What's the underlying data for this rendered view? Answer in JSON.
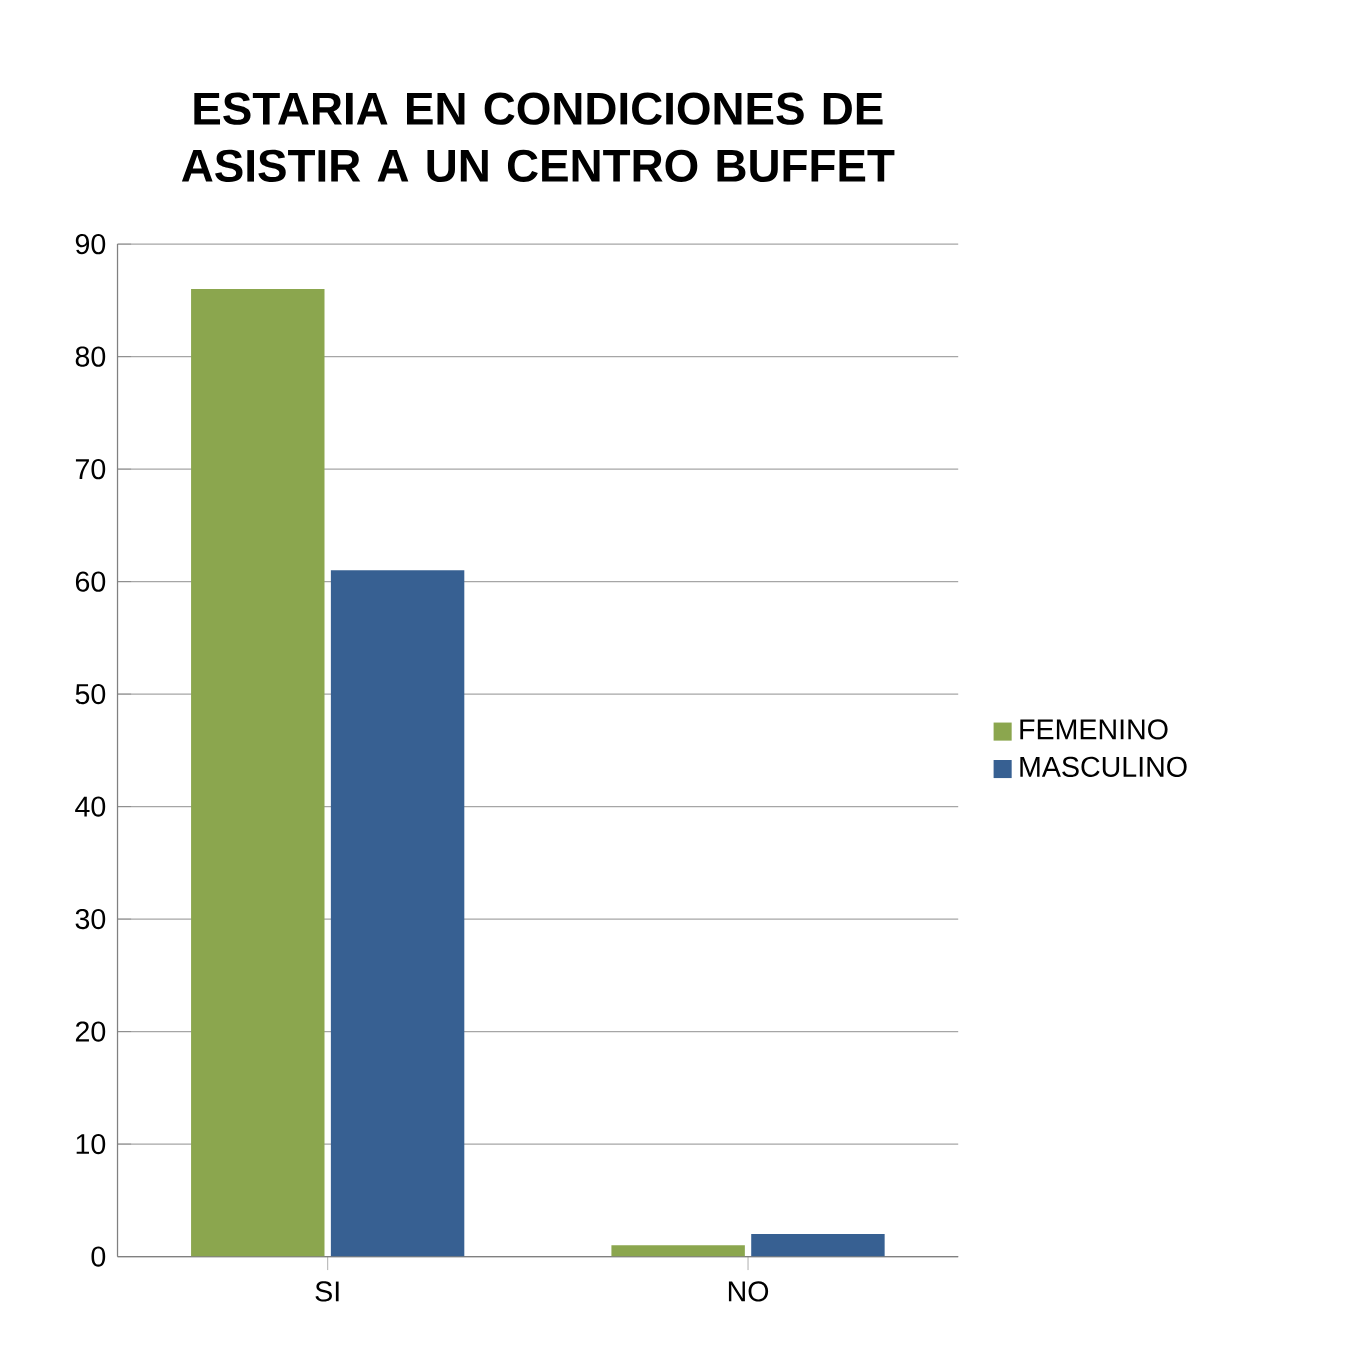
{
  "chart_data": {
    "type": "bar",
    "title": "ESTARIA EN CONDICIONES DE ASISTIR A UN CENTRO BUFFET",
    "categories": [
      "SI",
      "NO"
    ],
    "series": [
      {
        "name": "FEMENINO",
        "color": "#8ba64e",
        "values": [
          86,
          1
        ]
      },
      {
        "name": "MASCULINO",
        "color": "#376092",
        "values": [
          61,
          2
        ]
      }
    ],
    "ylim": [
      0,
      90
    ],
    "yticks": [
      0,
      10,
      20,
      30,
      40,
      50,
      60,
      70,
      80,
      90
    ],
    "grid": "y",
    "legend": "right"
  }
}
